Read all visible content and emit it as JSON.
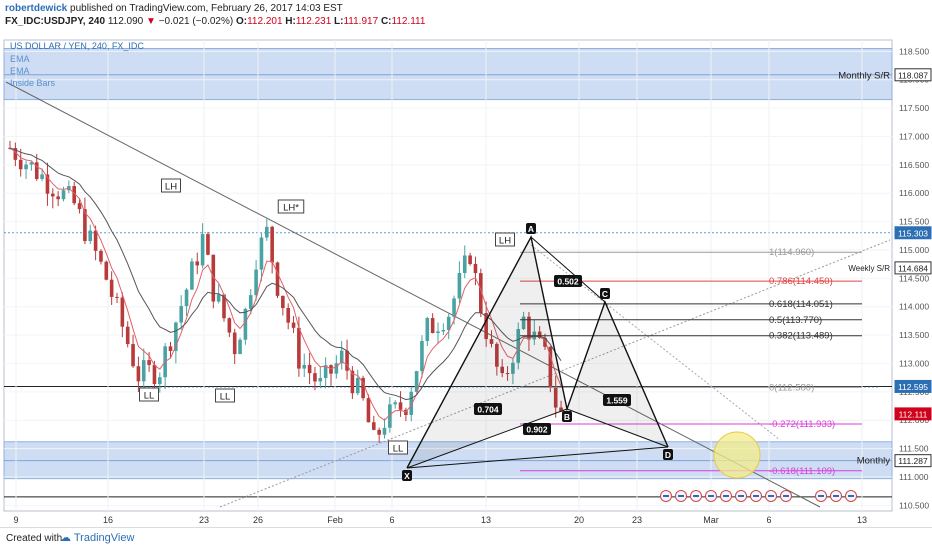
{
  "header": {
    "author": "robertdewick",
    "published_text": "published on TradingView.com, February 26, 2017 14:03 EST",
    "symbol_line": {
      "symbol": "FX_IDC:USDJPY, 240",
      "last": "112.090",
      "change": "−0.021 (−0.02%)",
      "o_label": "O:",
      "o_value": "112.201",
      "h_label": "H:",
      "h_value": "112.231",
      "l_label": "L:",
      "l_value": "111.917",
      "c_label": "C:",
      "c_value": "112.111"
    }
  },
  "legend": {
    "title": "US DOLLAR / YEN, 240, FX_IDC",
    "items": [
      "EMA",
      "EMA",
      "Inside Bars"
    ]
  },
  "footer": {
    "created_with": "Created with",
    "brand": "TradingView"
  },
  "colors": {
    "zone": "#c9d9f2",
    "up": "#4aa3a3",
    "down": "#b83a3a",
    "ema_fast": "#e0616a",
    "ema_slow": "#555555",
    "fib_red": "#e04545",
    "fib_pink": "#d93fd9",
    "blue_line": "#5b9bd5"
  },
  "chart_data": {
    "type": "candlestick",
    "title": "US DOLLAR / YEN, 240, FX_IDC",
    "ylim": [
      110.4,
      118.7
    ],
    "y_ticks": [
      "118.500",
      "118.000",
      "117.500",
      "117.000",
      "116.500",
      "116.000",
      "115.500",
      "115.000",
      "114.500",
      "114.000",
      "113.500",
      "113.000",
      "112.500",
      "112.000",
      "111.500",
      "111.000",
      "110.500"
    ],
    "x_ticks": [
      "9",
      "16",
      "23",
      "26",
      "Feb",
      "6",
      "13",
      "20",
      "23",
      "Mar",
      "6",
      "13"
    ],
    "price_labels": [
      {
        "text": "118.087",
        "value": 118.087,
        "color": "#333333"
      },
      {
        "text": "115.303",
        "value": 115.303,
        "color": "#2d6fb4"
      },
      {
        "text": "114.684",
        "value": 114.684,
        "color": "#333333"
      },
      {
        "text": "112.595",
        "value": 112.595,
        "color": "#2d6fb4"
      },
      {
        "text": "112.111",
        "value": 112.111,
        "color": "#d0021b"
      },
      {
        "text": "111.287",
        "value": 111.287,
        "color": "#333333"
      }
    ],
    "zones": [
      {
        "name": "Monthly S/R",
        "from": 117.65,
        "to": 118.55
      },
      {
        "name": "Monthly",
        "from": 110.97,
        "to": 111.62
      }
    ],
    "zone_labels": [
      "Monthly S/R",
      "Monthly"
    ],
    "weekly_label": "Weekly S/R",
    "pattern_labels": [
      "LH",
      "LH*",
      "LL",
      "LL",
      "LL",
      "LH"
    ],
    "points": [
      "A",
      "B",
      "C",
      "D",
      "X"
    ],
    "ratios": [
      "0.502",
      "0.704",
      "1.559",
      "0.902"
    ],
    "fib_levels": [
      {
        "label": "1(114.960)",
        "value": 114.96,
        "color": "#9a9a9a"
      },
      {
        "label": "0.786(114.450)",
        "value": 114.45,
        "color": "#e04545"
      },
      {
        "label": "0.618(114.051)",
        "value": 114.051,
        "color": "#333333"
      },
      {
        "label": "0.5(113.770)",
        "value": 113.77,
        "color": "#333333"
      },
      {
        "label": "0.382(113.489)",
        "value": 113.489,
        "color": "#333333"
      },
      {
        "label": "0(112.580)",
        "value": 112.58,
        "color": "#9a9a9a"
      },
      {
        "label": "-0.272(111.933)",
        "value": 111.933,
        "color": "#d93fd9"
      },
      {
        "label": "-0.618(111.109)",
        "value": 111.109,
        "color": "#d93fd9"
      }
    ],
    "anchor_prices": [
      {
        "day": 0,
        "price": 116.8
      },
      {
        "day": 3,
        "price": 116.3
      },
      {
        "day": 6,
        "price": 115.8
      },
      {
        "day": 9,
        "price": 114.5
      },
      {
        "day": 12,
        "price": 112.8
      },
      {
        "day": 14,
        "price": 112.9
      },
      {
        "day": 17,
        "price": 114.6
      },
      {
        "day": 18,
        "price": 115.2
      },
      {
        "day": 19,
        "price": 114.3
      },
      {
        "day": 21,
        "price": 113.3
      },
      {
        "day": 22,
        "price": 113.9
      },
      {
        "day": 23,
        "price": 114.9
      },
      {
        "day": 24,
        "price": 115.3
      },
      {
        "day": 25,
        "price": 114.4
      },
      {
        "day": 27,
        "price": 113.1
      },
      {
        "day": 29,
        "price": 112.6
      },
      {
        "day": 31,
        "price": 113.1
      },
      {
        "day": 33,
        "price": 112.3
      },
      {
        "day": 34,
        "price": 111.6
      },
      {
        "day": 35,
        "price": 112.0
      },
      {
        "day": 37,
        "price": 112.3
      },
      {
        "day": 39,
        "price": 113.6
      },
      {
        "day": 41,
        "price": 113.9
      },
      {
        "day": 42,
        "price": 114.4
      },
      {
        "day": 43,
        "price": 114.96
      },
      {
        "day": 44,
        "price": 114.0
      },
      {
        "day": 45,
        "price": 113.2
      },
      {
        "day": 46,
        "price": 112.6
      },
      {
        "day": 47,
        "price": 113.2
      },
      {
        "day": 48,
        "price": 113.77
      },
      {
        "day": 50,
        "price": 113.1
      },
      {
        "day": 51,
        "price": 112.3
      },
      {
        "day": 51.5,
        "price": 112.1
      }
    ]
  }
}
